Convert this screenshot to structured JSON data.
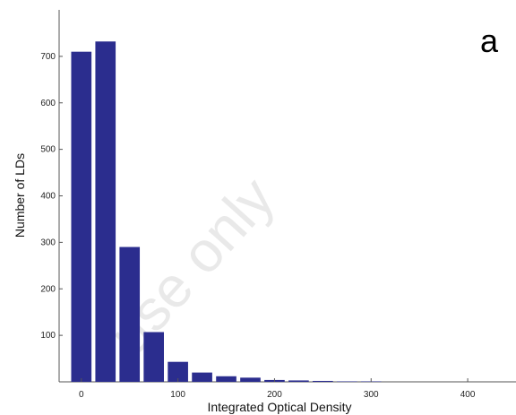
{
  "chart_data": {
    "type": "bar",
    "panel_label": "a",
    "watermark": "use only",
    "xlabel": "Integrated Optical Density",
    "ylabel": "Number of LDs",
    "xlim": [
      -23,
      450
    ],
    "ylim": [
      0,
      800
    ],
    "x_ticks": [
      0,
      100,
      200,
      300,
      400
    ],
    "y_ticks": [
      100,
      200,
      300,
      400,
      500,
      600,
      700
    ],
    "bin_width": 25,
    "bin_centers": [
      0,
      25,
      50,
      75,
      100,
      125,
      150,
      175,
      200,
      225,
      250,
      275,
      300,
      325,
      350,
      375,
      400,
      425
    ],
    "values": [
      710,
      732,
      290,
      107,
      43,
      20,
      12,
      9,
      4,
      3,
      2,
      1,
      1,
      0,
      0,
      0,
      0,
      0
    ],
    "bar_color": "#2b2d8e",
    "grid": false
  }
}
